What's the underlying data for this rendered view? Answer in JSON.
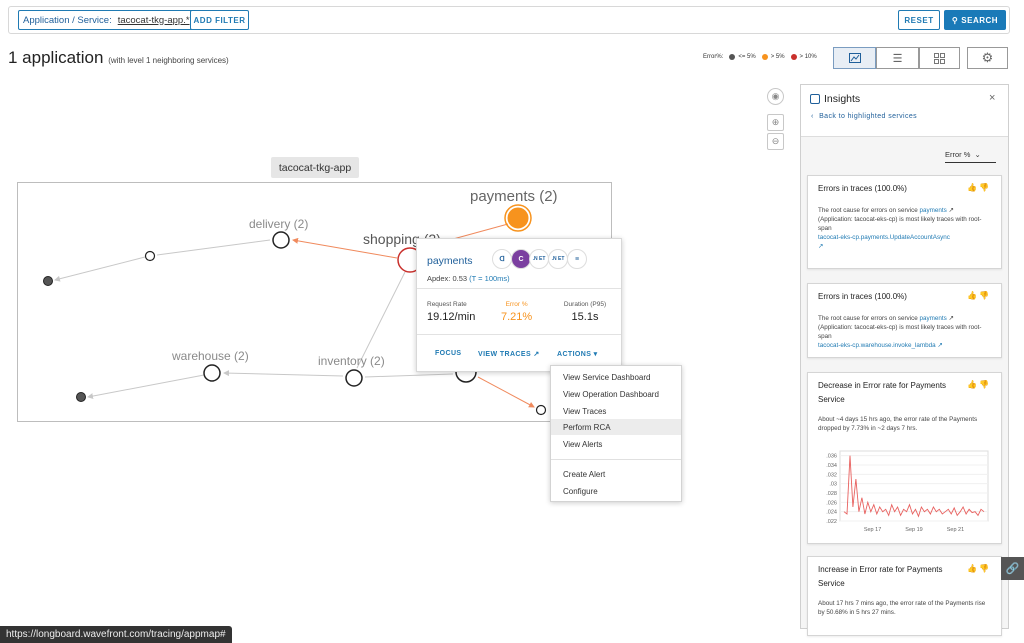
{
  "filter": {
    "chip_label": "Application / Service:",
    "chip_value": "tacocat-tkg-app.*",
    "add_filter": "ADD FILTER",
    "reset": "RESET",
    "search": "SEARCH"
  },
  "heading": {
    "title": "1 application",
    "subtitle": "(with level 1 neighboring services)"
  },
  "legend": {
    "label": "Error%:",
    "items": [
      {
        "label": "<= 5%",
        "color": "#555555"
      },
      {
        "label": "> 5%",
        "color": "#f7931e"
      },
      {
        "label": "> 10%",
        "color": "#c9302c"
      }
    ]
  },
  "map": {
    "app_label": "tacocat-tkg-app",
    "nodes": {
      "payments": "payments (2)",
      "delivery": "delivery (2)",
      "shopping": "shopping (2)",
      "warehouse": "warehouse (2)",
      "inventory": "inventory (2)"
    }
  },
  "popup": {
    "service": "payments",
    "badges": [
      "ᗡ",
      "C",
      ".N ET",
      ".N ET",
      "≡"
    ],
    "apdex_label": "Apdex:",
    "apdex_value": "0.53",
    "apdex_threshold": "(T = 100ms)",
    "metrics": [
      {
        "label": "Request Rate",
        "value": "19.12/min",
        "color": "#222222",
        "label_color": "#555555"
      },
      {
        "label": "Error %",
        "value": "7.21%",
        "color": "#f7931e",
        "label_color": "#f7931e"
      },
      {
        "label": "Duration (P95)",
        "value": "15.1s",
        "color": "#222222",
        "label_color": "#555555"
      }
    ],
    "focus": "FOCUS",
    "view_traces": "VIEW TRACES",
    "actions": "ACTIONS"
  },
  "menu": {
    "items": [
      "View Service Dashboard",
      "View Operation Dashboard",
      "View Traces",
      "Perform RCA",
      "View Alerts"
    ],
    "items2": [
      "Create Alert",
      "Configure"
    ],
    "highlighted": "Perform RCA"
  },
  "insights": {
    "title": "Insights",
    "back": "Back to highlighted services",
    "sort": "Error %",
    "cards": [
      {
        "title": "Errors in traces (100.0%)",
        "text1": "The root cause for errors on service",
        "service": "payments",
        "text2": "(Application: tacocat-eks-cp) is most likely traces with root-span",
        "span": "tacocat-eks-cp.payments.UpdateAccountAsync"
      },
      {
        "title": "Errors in traces (100.0%)",
        "text1": "The root cause for errors on service",
        "service": "payments",
        "text2": "(Application: tacocat-eks-cp) is most likely traces with root-span",
        "span": "tacocat-eks-cp.warehouse.invoke_lambda"
      },
      {
        "title": "Decrease in Error rate for Payments Service",
        "text": "About ~4 days 15 hrs ago, the error rate of the Payments dropped by 7.73% in ~2 days 7 hrs."
      },
      {
        "title": "Increase in Error rate for Payments Service",
        "text": "About 17 hrs 7 mins ago, the error rate of the Payments rise by 50.68% in 5 hrs 27 mins."
      }
    ]
  },
  "chart_data": {
    "type": "line",
    "y_ticks": [
      ".036",
      ".034",
      ".032",
      ".03",
      ".028",
      ".026",
      ".024",
      ".022"
    ],
    "x_ticks": [
      "Sep 17",
      "Sep 19",
      "Sep 21"
    ],
    "ylim": [
      0.022,
      0.037
    ],
    "series": [
      {
        "color": "#e8615f",
        "values": [
          0.024,
          0.0235,
          0.036,
          0.025,
          0.031,
          0.024,
          0.027,
          0.0235,
          0.026,
          0.024,
          0.0255,
          0.0235,
          0.025,
          0.024,
          0.0245,
          0.0232,
          0.0255,
          0.024,
          0.025,
          0.0232,
          0.0245,
          0.024,
          0.0255,
          0.0235,
          0.0245,
          0.023,
          0.025,
          0.024,
          0.0245,
          0.0235,
          0.025,
          0.024,
          0.0245,
          0.0235,
          0.024,
          0.0245,
          0.0235,
          0.0248,
          0.0232,
          0.024,
          0.025,
          0.0235,
          0.0245,
          0.0238,
          0.024,
          0.0232,
          0.0245,
          0.024
        ]
      }
    ]
  },
  "statusbar": "https://longboard.wavefront.com/tracing/appmap#"
}
